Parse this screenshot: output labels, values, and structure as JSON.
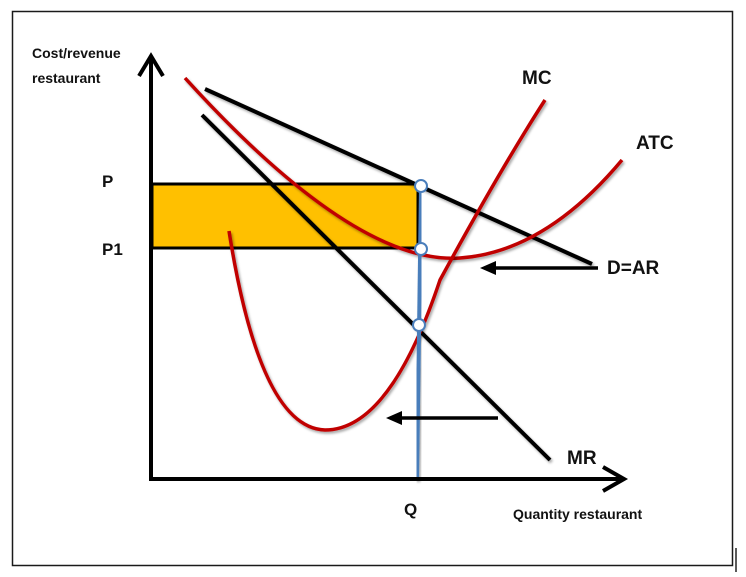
{
  "diagram": {
    "title": "",
    "y_axis_label_line1": "Cost/revenue",
    "y_axis_label_line2": "restaurant",
    "x_axis_label": "Quantity restaurant",
    "price_label_p": "P",
    "price_label_p1": "P1",
    "quantity_label_q": "Q",
    "curve_mc_label": "MC",
    "curve_atc_label": "ATC",
    "curve_dar_label": "D=AR",
    "curve_mr_label": "MR"
  },
  "colors": {
    "border": "#1a1a1a",
    "axis": "#000000",
    "curve_red": "#c00000",
    "line_black": "#000000",
    "quantity_line": "#4a7ebb",
    "profit_fill": "#ffc000"
  }
}
